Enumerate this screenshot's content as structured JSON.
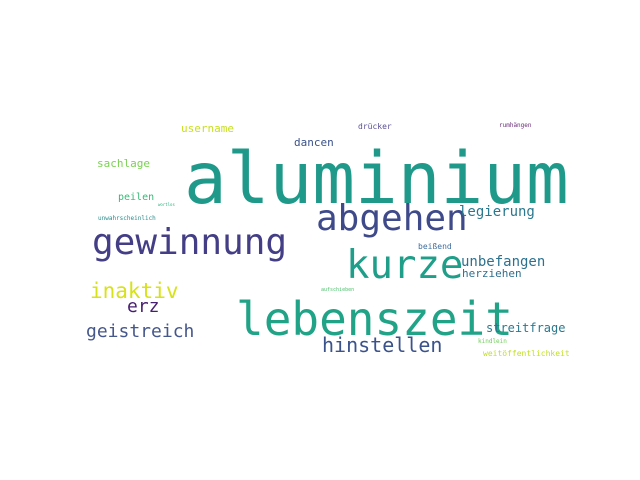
{
  "words": [
    {
      "text": "aluminium",
      "color": "#1f9a8a"
    },
    {
      "text": "lebenszeit",
      "color": "#21a387"
    },
    {
      "text": "abgehen",
      "color": "#3e4a89"
    },
    {
      "text": "gewinnung",
      "color": "#433e85"
    },
    {
      "text": "kurze",
      "color": "#1f9e89"
    },
    {
      "text": "hinstellen",
      "color": "#3b528b"
    },
    {
      "text": "inaktiv",
      "color": "#d8e219"
    },
    {
      "text": "geistreich",
      "color": "#46578c"
    },
    {
      "text": "legierung",
      "color": "#2a788e"
    },
    {
      "text": "unbefangen",
      "color": "#2c718e"
    },
    {
      "text": "erz",
      "color": "#481f70"
    },
    {
      "text": "streitfrage",
      "color": "#2a788e"
    },
    {
      "text": "username",
      "color": "#c8e020"
    },
    {
      "text": "dancen",
      "color": "#3b528b"
    },
    {
      "text": "sachlage",
      "color": "#7ad151"
    },
    {
      "text": "herziehen",
      "color": "#2e6f8e"
    },
    {
      "text": "peilen",
      "color": "#37b878"
    },
    {
      "text": "drücker",
      "color": "#5b4f96"
    },
    {
      "text": "beißend",
      "color": "#3e6da0"
    },
    {
      "text": "weitöffentlichkeit",
      "color": "#c2df23"
    },
    {
      "text": "kindlein",
      "color": "#6ece58"
    },
    {
      "text": "rumhängen",
      "color": "#6a2c7a"
    },
    {
      "text": "unwahrscheinlich",
      "color": "#2a8c8c"
    },
    {
      "text": "aufschieben",
      "color": "#4cc26c"
    },
    {
      "text": "wortlos",
      "color": "#2ab07f"
    }
  ]
}
